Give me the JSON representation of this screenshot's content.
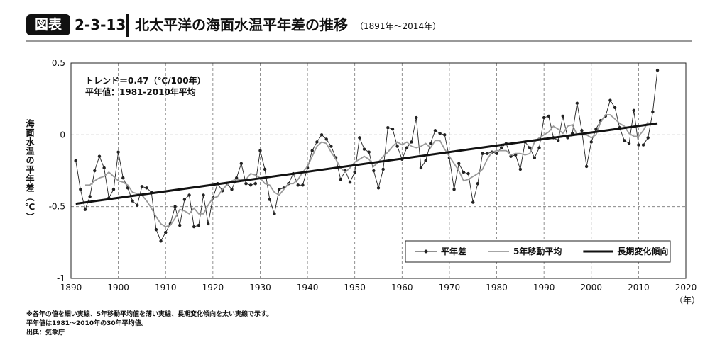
{
  "chart_data": {
    "type": "line",
    "title_badge": "図表",
    "figure_number": "2-3-13",
    "title": "北太平洋の海面水温平年差の推移",
    "subtitle": "（1891年～2014年）",
    "annotations": [
      "トレンド＝0.47（℃/100年）",
      "平年値：1981-2010年平均"
    ],
    "y_label": "海面水温の平年差（℃）",
    "x_label": "（年）",
    "notes": [
      "※各年の値を細い実線、5年移動平均値を薄い実線、長期変化傾向を太い実線で示す。",
      "平年値は1981～2010年の30年平均値。",
      "出典：気象庁"
    ],
    "x": [
      1891,
      1892,
      1893,
      1894,
      1895,
      1896,
      1897,
      1898,
      1899,
      1900,
      1901,
      1902,
      1903,
      1904,
      1905,
      1906,
      1907,
      1908,
      1909,
      1910,
      1911,
      1912,
      1913,
      1914,
      1915,
      1916,
      1917,
      1918,
      1919,
      1920,
      1921,
      1922,
      1923,
      1924,
      1925,
      1926,
      1927,
      1928,
      1929,
      1930,
      1931,
      1932,
      1933,
      1934,
      1935,
      1936,
      1937,
      1938,
      1939,
      1940,
      1941,
      1942,
      1943,
      1944,
      1945,
      1946,
      1947,
      1948,
      1949,
      1950,
      1951,
      1952,
      1953,
      1954,
      1955,
      1956,
      1957,
      1958,
      1959,
      1960,
      1961,
      1962,
      1963,
      1964,
      1965,
      1966,
      1967,
      1968,
      1969,
      1970,
      1971,
      1972,
      1973,
      1974,
      1975,
      1976,
      1977,
      1978,
      1979,
      1980,
      1981,
      1982,
      1983,
      1984,
      1985,
      1986,
      1987,
      1988,
      1989,
      1990,
      1991,
      1992,
      1993,
      1994,
      1995,
      1996,
      1997,
      1998,
      1999,
      2000,
      2001,
      2002,
      2003,
      2004,
      2005,
      2006,
      2007,
      2008,
      2009,
      2010,
      2011,
      2012,
      2013,
      2014
    ],
    "series": [
      {
        "name": "平年差",
        "color": "#222222",
        "style": "points",
        "values": [
          -0.18,
          -0.38,
          -0.52,
          -0.43,
          -0.25,
          -0.15,
          -0.23,
          -0.44,
          -0.38,
          -0.12,
          -0.3,
          -0.37,
          -0.46,
          -0.49,
          -0.36,
          -0.37,
          -0.4,
          -0.66,
          -0.74,
          -0.68,
          -0.62,
          -0.5,
          -0.63,
          -0.45,
          -0.42,
          -0.64,
          -0.63,
          -0.42,
          -0.62,
          -0.44,
          -0.34,
          -0.39,
          -0.34,
          -0.38,
          -0.3,
          -0.2,
          -0.34,
          -0.35,
          -0.34,
          -0.11,
          -0.24,
          -0.45,
          -0.55,
          -0.38,
          -0.37,
          -0.34,
          -0.27,
          -0.35,
          -0.35,
          -0.23,
          -0.11,
          -0.05,
          0.0,
          -0.03,
          -0.08,
          -0.16,
          -0.31,
          -0.25,
          -0.33,
          -0.26,
          -0.02,
          -0.1,
          -0.12,
          -0.25,
          -0.37,
          -0.24,
          0.05,
          0.04,
          -0.08,
          -0.17,
          -0.09,
          -0.05,
          0.12,
          -0.23,
          -0.18,
          -0.06,
          0.03,
          0.01,
          0.0,
          -0.16,
          -0.38,
          -0.2,
          -0.26,
          -0.27,
          -0.47,
          -0.34,
          -0.13,
          -0.13,
          -0.12,
          -0.13,
          -0.09,
          -0.06,
          -0.15,
          -0.14,
          -0.24,
          -0.05,
          -0.09,
          -0.16,
          -0.09,
          0.12,
          0.13,
          -0.02,
          -0.04,
          0.13,
          -0.02,
          0.01,
          0.22,
          0.03,
          -0.22,
          -0.05,
          0.04,
          0.1,
          0.13,
          0.24,
          0.19,
          0.05,
          -0.04,
          -0.06,
          0.17,
          -0.07,
          -0.07,
          -0.02,
          0.16,
          0.45
        ]
      },
      {
        "name": "5年移動平均",
        "color": "#9a9a9a",
        "style": "line",
        "values": [
          null,
          null,
          -0.35,
          -0.35,
          -0.32,
          -0.3,
          -0.29,
          -0.26,
          -0.29,
          -0.32,
          -0.33,
          -0.35,
          -0.4,
          -0.41,
          -0.42,
          -0.46,
          -0.51,
          -0.57,
          -0.62,
          -0.64,
          -0.63,
          -0.58,
          -0.52,
          -0.53,
          -0.55,
          -0.51,
          -0.55,
          -0.55,
          -0.49,
          -0.44,
          -0.43,
          -0.38,
          -0.35,
          -0.32,
          -0.31,
          -0.31,
          -0.31,
          -0.27,
          -0.28,
          -0.3,
          -0.34,
          -0.35,
          -0.4,
          -0.42,
          -0.38,
          -0.34,
          -0.34,
          -0.31,
          -0.26,
          -0.22,
          -0.15,
          -0.08,
          -0.05,
          -0.06,
          -0.12,
          -0.17,
          -0.23,
          -0.26,
          -0.23,
          -0.19,
          -0.17,
          -0.15,
          -0.17,
          -0.22,
          -0.19,
          -0.15,
          -0.12,
          -0.08,
          -0.05,
          -0.07,
          -0.05,
          -0.08,
          -0.09,
          -0.08,
          -0.06,
          -0.09,
          -0.04,
          -0.04,
          -0.1,
          -0.15,
          -0.2,
          -0.25,
          -0.32,
          -0.31,
          -0.29,
          -0.27,
          -0.24,
          -0.17,
          -0.12,
          -0.11,
          -0.11,
          -0.11,
          -0.14,
          -0.13,
          -0.13,
          -0.14,
          -0.13,
          -0.05,
          -0.02,
          0.0,
          0.02,
          0.06,
          0.04,
          0.01,
          0.06,
          0.07,
          0.0,
          0.0,
          0.0,
          -0.02,
          0.0,
          0.09,
          0.14,
          0.14,
          0.11,
          0.08,
          0.06,
          0.01,
          -0.01,
          -0.01,
          0.03,
          0.09,
          null,
          null
        ]
      },
      {
        "name": "長期変化傾向",
        "color": "#111111",
        "style": "trend",
        "x": [
          1891,
          2014
        ],
        "values": [
          -0.48,
          0.08
        ]
      }
    ],
    "xlim": [
      1890,
      2020
    ],
    "xticks": [
      1890,
      1900,
      1910,
      1920,
      1930,
      1940,
      1950,
      1960,
      1970,
      1980,
      1990,
      2000,
      2010,
      2020
    ],
    "ylim": [
      -1,
      0.5
    ],
    "yticks": [
      0.5,
      0,
      -0.5,
      -1
    ],
    "grid": true,
    "legend": "lower right"
  }
}
